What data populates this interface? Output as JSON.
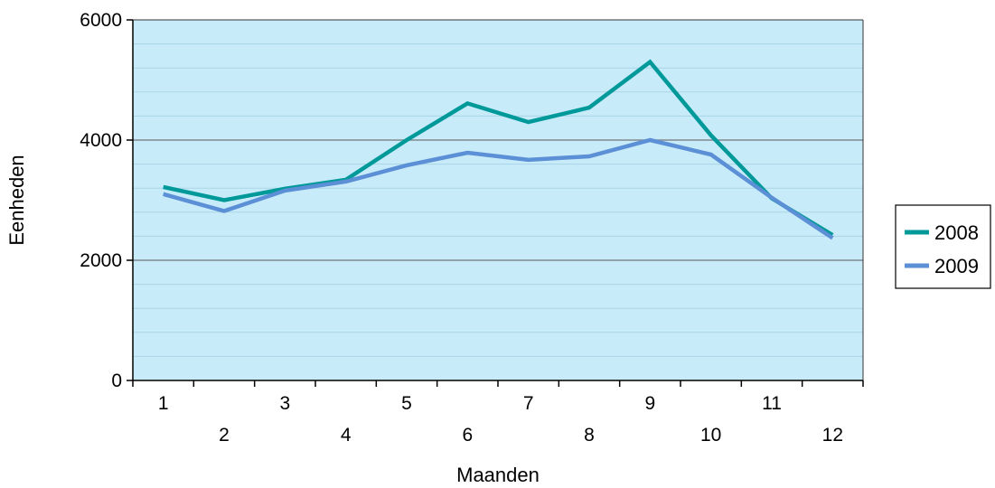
{
  "chart_data": {
    "type": "line",
    "title": "",
    "xlabel": "Maanden",
    "ylabel": "Eenheden",
    "x": [
      1,
      2,
      3,
      4,
      5,
      6,
      7,
      8,
      9,
      10,
      11,
      12
    ],
    "x_tick_labels": [
      "1",
      "2",
      "3",
      "4",
      "5",
      "6",
      "7",
      "8",
      "9",
      "10",
      "11",
      "12"
    ],
    "y_ticks": [
      0,
      2000,
      4000,
      6000
    ],
    "y_tick_labels": [
      "0",
      "2000",
      "4000",
      "6000"
    ],
    "ylim": [
      0,
      6000
    ],
    "grid": true,
    "legend_position": "right",
    "plot_background": "#c8ebfa",
    "series": [
      {
        "name": "2008",
        "color": "#009999",
        "values": [
          3220,
          3000,
          3190,
          3340,
          4000,
          4610,
          4300,
          4540,
          5300,
          4080,
          3030,
          2420
        ]
      },
      {
        "name": "2009",
        "color": "#5b8fd6",
        "values": [
          3100,
          2820,
          3160,
          3310,
          3580,
          3790,
          3670,
          3730,
          4000,
          3760,
          3040,
          2370
        ]
      }
    ]
  }
}
